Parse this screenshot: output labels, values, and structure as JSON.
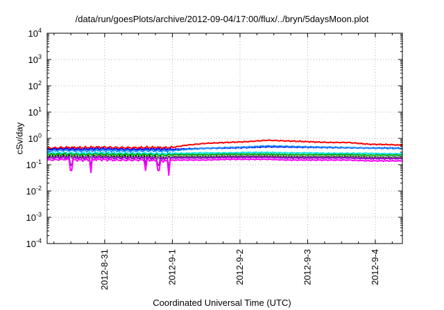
{
  "chart_data": {
    "type": "line",
    "title": "/data/run/goesPlots/archive/2012-09-04/17:00/flux/../bryn/5daysMoon.plot",
    "xlabel": "Coordinated Universal Time (UTC)",
    "ylabel": "cSv/day",
    "yscale": "log",
    "ylim": [
      0.0001,
      10000
    ],
    "y_ticks": [
      {
        "value": 0.0001,
        "mantissa": "10",
        "exp": "-4"
      },
      {
        "value": 0.001,
        "mantissa": "10",
        "exp": "-3"
      },
      {
        "value": 0.01,
        "mantissa": "10",
        "exp": "-2"
      },
      {
        "value": 0.1,
        "mantissa": "10",
        "exp": "-1"
      },
      {
        "value": 1,
        "mantissa": "10",
        "exp": "0"
      },
      {
        "value": 10,
        "mantissa": "10",
        "exp": "1"
      },
      {
        "value": 100,
        "mantissa": "10",
        "exp": "2"
      },
      {
        "value": 1000,
        "mantissa": "10",
        "exp": "3"
      },
      {
        "value": 10000,
        "mantissa": "10",
        "exp": "4"
      }
    ],
    "x_unit": "days from 2012-08-31 00:00 UTC",
    "xlim": [
      -0.85,
      4.4
    ],
    "x_ticks": [
      {
        "value": 0,
        "label": "2012-8-31"
      },
      {
        "value": 1,
        "label": "2012-9-1"
      },
      {
        "value": 2,
        "label": "2012-9-2"
      },
      {
        "value": 3,
        "label": "2012-9-3"
      },
      {
        "value": 4,
        "label": "2012-9-4"
      }
    ],
    "grid": true,
    "series": [
      {
        "name": "red",
        "color": "#ff0000",
        "x": [
          -0.85,
          -0.6,
          -0.35,
          -0.1,
          0.15,
          0.4,
          0.65,
          0.9,
          1.0,
          1.2,
          1.5,
          1.8,
          2.1,
          2.4,
          2.7,
          3.0,
          3.3,
          3.6,
          3.9,
          4.2,
          4.4
        ],
        "values": [
          0.42,
          0.45,
          0.44,
          0.46,
          0.45,
          0.44,
          0.45,
          0.44,
          0.45,
          0.55,
          0.65,
          0.7,
          0.75,
          0.85,
          0.8,
          0.75,
          0.7,
          0.7,
          0.6,
          0.58,
          0.55
        ]
      },
      {
        "name": "blue",
        "color": "#0000ff",
        "x": [
          -0.85,
          -0.6,
          -0.35,
          -0.1,
          0.15,
          0.4,
          0.65,
          0.9,
          1.0,
          1.2,
          1.5,
          1.8,
          2.1,
          2.4,
          2.7,
          3.0,
          3.3,
          3.6,
          3.9,
          4.2,
          4.4
        ],
        "values": [
          0.38,
          0.4,
          0.38,
          0.4,
          0.39,
          0.38,
          0.39,
          0.38,
          0.38,
          0.4,
          0.42,
          0.43,
          0.45,
          0.48,
          0.47,
          0.46,
          0.45,
          0.44,
          0.43,
          0.43,
          0.42
        ]
      },
      {
        "name": "dodgerblue",
        "color": "#1e90ff",
        "x": [
          -0.85,
          -0.6,
          -0.35,
          -0.1,
          0.15,
          0.4,
          0.65,
          0.9,
          1.0,
          1.2,
          1.5,
          1.8,
          2.1,
          2.4,
          2.7,
          3.0,
          3.3,
          3.6,
          3.9,
          4.2,
          4.4
        ],
        "values": [
          0.33,
          0.35,
          0.33,
          0.35,
          0.34,
          0.33,
          0.34,
          0.33,
          0.34,
          0.38,
          0.42,
          0.45,
          0.47,
          0.52,
          0.5,
          0.48,
          0.46,
          0.45,
          0.43,
          0.42,
          0.42
        ]
      },
      {
        "name": "cyan",
        "color": "#00e5e5",
        "x": [
          -0.85,
          -0.6,
          -0.35,
          -0.1,
          0.15,
          0.4,
          0.65,
          0.9,
          1.0,
          1.2,
          1.5,
          1.8,
          2.1,
          2.4,
          2.7,
          3.0,
          3.3,
          3.6,
          3.9,
          4.2,
          4.4
        ],
        "values": [
          0.27,
          0.28,
          0.27,
          0.28,
          0.27,
          0.27,
          0.27,
          0.26,
          0.27,
          0.27,
          0.28,
          0.28,
          0.29,
          0.29,
          0.28,
          0.28,
          0.27,
          0.27,
          0.27,
          0.26,
          0.26
        ]
      },
      {
        "name": "green",
        "color": "#00a000",
        "x": [
          -0.85,
          -0.6,
          -0.35,
          -0.1,
          0.15,
          0.4,
          0.65,
          0.9,
          1.0,
          1.2,
          1.5,
          1.8,
          2.1,
          2.4,
          2.7,
          3.0,
          3.3,
          3.6,
          3.9,
          4.2,
          4.4
        ],
        "values": [
          0.24,
          0.25,
          0.24,
          0.25,
          0.24,
          0.24,
          0.24,
          0.23,
          0.24,
          0.24,
          0.24,
          0.25,
          0.25,
          0.25,
          0.24,
          0.24,
          0.24,
          0.24,
          0.23,
          0.23,
          0.23
        ]
      },
      {
        "name": "black",
        "color": "#000000",
        "x": [
          -0.85,
          -0.6,
          -0.35,
          -0.1,
          0.15,
          0.4,
          0.65,
          0.9,
          1.0,
          1.2,
          1.5,
          1.8,
          2.1,
          2.4,
          2.7,
          3.0,
          3.3,
          3.6,
          3.9,
          4.2,
          4.4
        ],
        "values": [
          0.2,
          0.21,
          0.2,
          0.21,
          0.2,
          0.2,
          0.2,
          0.19,
          0.2,
          0.2,
          0.2,
          0.21,
          0.21,
          0.21,
          0.2,
          0.2,
          0.2,
          0.2,
          0.19,
          0.19,
          0.19
        ]
      },
      {
        "name": "gray",
        "color": "#8a8a8a",
        "x": [
          -0.85,
          -0.6,
          -0.35,
          -0.1,
          0.15,
          0.4,
          0.65,
          0.9,
          1.0,
          1.2,
          1.5,
          1.8,
          2.1,
          2.4,
          2.7,
          3.0,
          3.3,
          3.6,
          3.9,
          4.2,
          4.4
        ],
        "values": [
          0.19,
          0.2,
          0.19,
          0.2,
          0.19,
          0.19,
          0.19,
          0.18,
          0.19,
          0.19,
          0.19,
          0.2,
          0.2,
          0.2,
          0.19,
          0.19,
          0.19,
          0.19,
          0.18,
          0.18,
          0.18
        ]
      },
      {
        "name": "purple",
        "color": "#9400d3",
        "x": [
          -0.85,
          -0.6,
          -0.35,
          -0.1,
          0.15,
          0.4,
          0.65,
          0.9,
          1.0,
          1.2,
          1.5,
          1.8,
          2.1,
          2.4,
          2.7,
          3.0,
          3.3,
          3.6,
          3.9,
          4.2,
          4.4
        ],
        "values": [
          0.18,
          0.19,
          0.18,
          0.19,
          0.18,
          0.18,
          0.18,
          0.17,
          0.18,
          0.18,
          0.18,
          0.19,
          0.19,
          0.19,
          0.18,
          0.18,
          0.18,
          0.18,
          0.17,
          0.17,
          0.17
        ]
      },
      {
        "name": "magenta",
        "color": "#ff00ff",
        "x": [
          -0.85,
          -0.6,
          -0.35,
          -0.1,
          0.15,
          0.4,
          0.65,
          0.9,
          1.0,
          1.2,
          1.5,
          1.8,
          2.1,
          2.4,
          2.7,
          3.0,
          3.3,
          3.6,
          3.9,
          4.2,
          4.4
        ],
        "values": [
          0.15,
          0.16,
          0.15,
          0.16,
          0.15,
          0.15,
          0.15,
          0.14,
          0.15,
          0.15,
          0.15,
          0.16,
          0.16,
          0.16,
          0.15,
          0.15,
          0.15,
          0.15,
          0.14,
          0.14,
          0.14
        ]
      }
    ],
    "magenta_dips": [
      {
        "x": -0.5,
        "value": 0.06
      },
      {
        "x": -0.2,
        "value": 0.05
      },
      {
        "x": 0.6,
        "value": 0.06
      },
      {
        "x": 0.8,
        "value": 0.06
      },
      {
        "x": 0.95,
        "value": 0.04
      }
    ]
  }
}
